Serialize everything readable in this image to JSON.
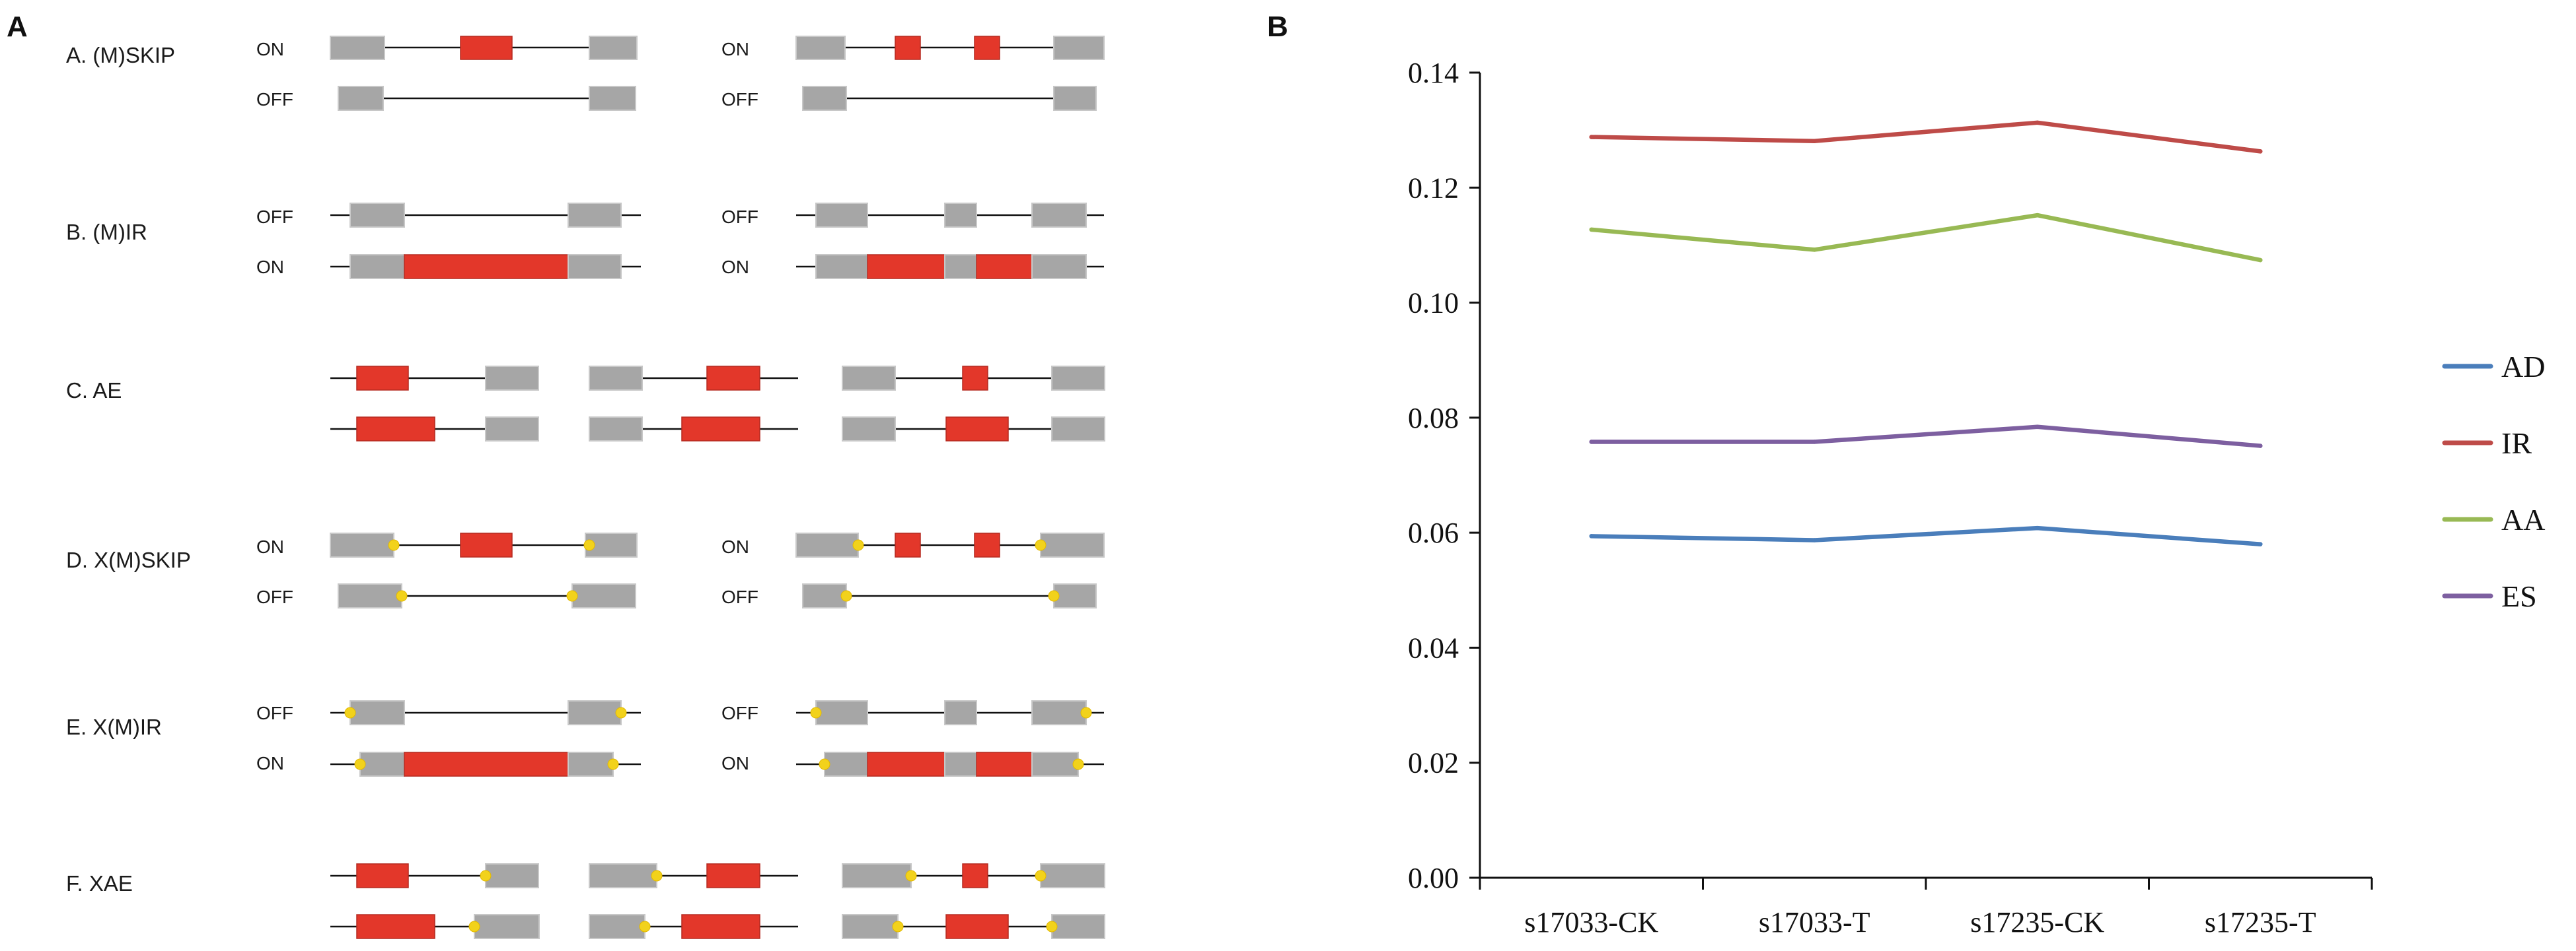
{
  "panel_a": {
    "letter": "A",
    "rows": [
      {
        "label": "A. (M)SKIP",
        "left_states": [
          "ON",
          "OFF"
        ],
        "right_states": [
          "ON",
          "OFF"
        ]
      },
      {
        "label": "B. (M)IR",
        "left_states": [
          "OFF",
          "ON"
        ],
        "right_states": [
          "OFF",
          "ON"
        ]
      },
      {
        "label": "C. AE",
        "left_states": [],
        "right_states": []
      },
      {
        "label": "D. X(M)SKIP",
        "left_states": [
          "ON",
          "OFF"
        ],
        "right_states": [
          "ON",
          "OFF"
        ]
      },
      {
        "label": "E. X(M)IR",
        "left_states": [
          "OFF",
          "ON"
        ],
        "right_states": [
          "OFF",
          "ON"
        ]
      },
      {
        "label": "F. XAE",
        "left_states": [],
        "right_states": []
      }
    ],
    "colors": {
      "constitutive_exon": "#a6a6a6",
      "alternative_exon": "#e3372a",
      "snp_marker": "#f2d21b",
      "intron": "#111111"
    }
  },
  "panel_b": {
    "letter": "B",
    "chart_data": {
      "type": "line",
      "title": "",
      "xlabel": "",
      "ylabel": "",
      "categories": [
        "s17033-CK",
        "s17033-T",
        "s17235-CK",
        "s17235-T"
      ],
      "ylim": [
        0,
        0.14
      ],
      "yticks": [
        "0.00",
        "0.02",
        "0.04",
        "0.06",
        "0.08",
        "0.10",
        "0.12",
        "0.14"
      ],
      "grid": false,
      "legend_position": "right",
      "series": [
        {
          "name": "AD",
          "color": "#4a7ebb",
          "values": [
            0.0594,
            0.0587,
            0.0608,
            0.058
          ]
        },
        {
          "name": "IR",
          "color": "#be4b48",
          "values": [
            0.1288,
            0.1281,
            0.1313,
            0.1263
          ]
        },
        {
          "name": "AA",
          "color": "#98b954",
          "values": [
            0.1127,
            0.1092,
            0.1152,
            0.1074
          ]
        },
        {
          "name": "ES",
          "color": "#7d5fa0",
          "values": [
            0.0758,
            0.0758,
            0.0784,
            0.0751
          ]
        }
      ]
    }
  }
}
